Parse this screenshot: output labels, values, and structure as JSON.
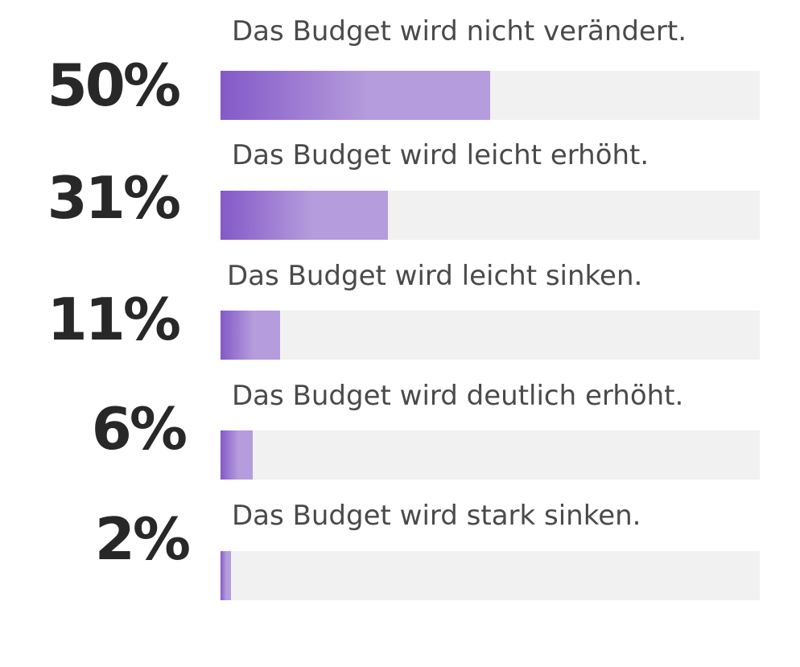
{
  "chart_data": {
    "type": "bar",
    "orientation": "horizontal",
    "unit": "%",
    "xlim": [
      0,
      100
    ],
    "categories": [
      "Das Budget wird nicht verändert.",
      "Das Budget wird leicht erhöht.",
      "Das Budget wird leicht sinken.",
      "Das Budget wird deutlich erhöht.",
      "Das Budget wird stark sinken."
    ],
    "values": [
      50,
      31,
      11,
      6,
      2
    ],
    "value_labels": [
      "50%",
      "31%",
      "11%",
      "6%",
      "2%"
    ],
    "colors": {
      "bar_start": "#8459c8",
      "bar_end": "#b59cdc",
      "track": "#f1f1f1",
      "value_text": "#282828",
      "label_text": "#4a4a4a"
    },
    "title": "",
    "xlabel": "",
    "ylabel": "",
    "grid": false,
    "legend": "none"
  }
}
